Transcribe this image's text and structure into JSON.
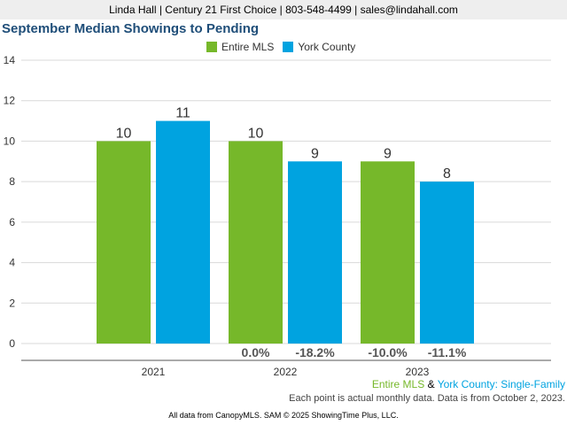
{
  "header": {
    "contact": "Linda Hall | Century 21 First Choice | 803-548-4499 | sales@lindahall.com"
  },
  "footer": {
    "series_label_1": "Entire MLS",
    "series_label_amp": " & ",
    "series_label_2": "York County",
    "series_label_suffix": ": Single-Family",
    "note": "Each point is actual monthly data. Data is from October 2, 2023.",
    "source": "All data from CanopyMLS. SAM © 2025 ShowingTime Plus, LLC."
  },
  "colors": {
    "entire_mls": "#76b82a",
    "york_county": "#00a3e0",
    "title": "#1f4e79"
  },
  "chart_data": {
    "type": "bar",
    "title": "September Median Showings to Pending",
    "categories": [
      "2021",
      "2022",
      "2023"
    ],
    "series": [
      {
        "name": "Entire MLS",
        "values": [
          10,
          10,
          9
        ],
        "change_labels": [
          "",
          "0.0%",
          "-10.0%"
        ]
      },
      {
        "name": "York County",
        "values": [
          11,
          9,
          8
        ],
        "change_labels": [
          "",
          "-18.2%",
          "-11.1%"
        ]
      }
    ],
    "ylim": [
      0,
      14
    ],
    "yticks": [
      0,
      2,
      4,
      6,
      8,
      10,
      12,
      14
    ],
    "grid": true,
    "legend": "top-center"
  }
}
